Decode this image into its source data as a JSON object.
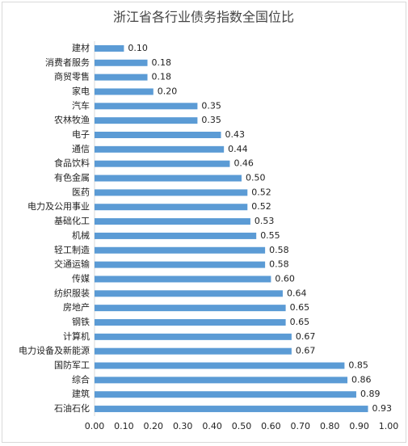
{
  "chart_data": {
    "type": "hbar",
    "title": "浙江省各行业债务指数全国位比",
    "categories": [
      "建材",
      "消费者服务",
      "商贸零售",
      "家电",
      "汽车",
      "农林牧渔",
      "电子",
      "通信",
      "食品饮料",
      "有色金属",
      "医药",
      "电力及公用事业",
      "基础化工",
      "机械",
      "轻工制造",
      "交通运输",
      "传媒",
      "纺织服装",
      "房地产",
      "钢铁",
      "计算机",
      "电力设备及新能源",
      "国防军工",
      "综合",
      "建筑",
      "石油石化"
    ],
    "values": [
      0.1,
      0.18,
      0.18,
      0.2,
      0.35,
      0.35,
      0.43,
      0.44,
      0.46,
      0.5,
      0.52,
      0.52,
      0.53,
      0.55,
      0.58,
      0.58,
      0.6,
      0.64,
      0.65,
      0.65,
      0.67,
      0.67,
      0.85,
      0.86,
      0.89,
      0.93
    ],
    "value_labels": [
      "0.10",
      "0.18",
      "0.18",
      "0.20",
      "0.35",
      "0.35",
      "0.43",
      "0.44",
      "0.46",
      "0.50",
      "0.52",
      "0.52",
      "0.53",
      "0.55",
      "0.58",
      "0.58",
      "0.60",
      "0.64",
      "0.65",
      "0.65",
      "0.67",
      "0.67",
      "0.85",
      "0.86",
      "0.89",
      "0.93"
    ],
    "color": "#5b9bd5",
    "xlim": [
      0,
      1
    ],
    "xticks": [
      {
        "value": 0,
        "label": "0.00"
      },
      {
        "value": 0.1,
        "label": "0.10"
      },
      {
        "value": 0.2,
        "label": "0.20"
      },
      {
        "value": 0.3,
        "label": "0.30"
      },
      {
        "value": 0.4,
        "label": "0.40"
      },
      {
        "value": 0.5,
        "label": "0.50"
      },
      {
        "value": 0.6,
        "label": "0.60"
      },
      {
        "value": 0.7,
        "label": "0.70"
      },
      {
        "value": 0.8,
        "label": "0.80"
      },
      {
        "value": 0.9,
        "label": "0.90"
      },
      {
        "value": 1,
        "label": "1.00"
      }
    ],
    "grid": false
  }
}
